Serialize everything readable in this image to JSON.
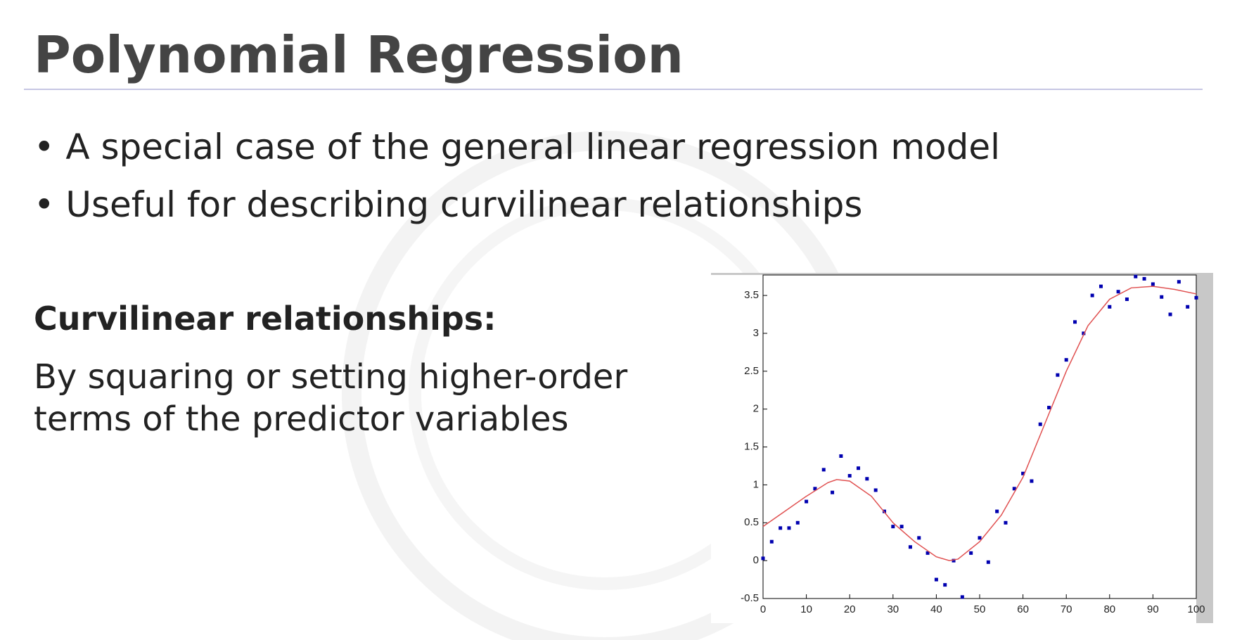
{
  "header": {
    "title": "Polynomial Regression"
  },
  "bullets": [
    "A special case of the general linear regression model",
    "Useful for describing curvilinear relationships"
  ],
  "section": {
    "heading": "Curvilinear relationships:",
    "lines": [
      "By squaring or setting higher-order",
      "terms of the predictor variables"
    ]
  },
  "chart_data": {
    "type": "scatter",
    "xlim": [
      0,
      100
    ],
    "xticks": [
      0,
      10,
      20,
      30,
      40,
      50,
      60,
      70,
      80,
      90,
      100
    ],
    "ylim": [
      -0.5,
      3.77
    ],
    "yticks": [
      -0.5,
      0,
      0.5,
      1,
      1.5,
      2,
      2.5,
      3,
      3.5
    ],
    "series": [
      {
        "type": "scatter",
        "color": "#0000b0",
        "x": [
          0,
          2,
          4,
          6,
          8,
          10,
          12,
          14,
          16,
          18,
          20,
          22,
          24,
          26,
          28,
          30,
          32,
          34,
          36,
          38,
          40,
          42,
          44,
          46,
          48,
          50,
          52,
          54,
          56,
          58,
          60,
          62,
          64,
          66,
          68,
          70,
          72,
          74,
          76,
          78,
          80,
          82,
          84,
          86,
          88,
          90,
          92,
          94,
          96,
          98,
          100
        ],
        "values": [
          0.03,
          0.25,
          0.43,
          0.43,
          0.5,
          0.78,
          0.95,
          1.2,
          0.9,
          1.38,
          1.12,
          1.22,
          1.08,
          0.93,
          0.65,
          0.45,
          0.45,
          0.18,
          0.3,
          0.1,
          -0.25,
          -0.32,
          0.0,
          -0.48,
          0.1,
          0.3,
          -0.02,
          0.65,
          0.5,
          0.95,
          1.15,
          1.05,
          1.8,
          2.02,
          2.45,
          2.65,
          3.15,
          3.0,
          3.5,
          3.62,
          3.35,
          3.55,
          3.45,
          3.75,
          3.72,
          3.65,
          3.48,
          3.25,
          3.68,
          3.35,
          3.47
        ]
      },
      {
        "type": "line",
        "color": "#e05050",
        "x": [
          0,
          5,
          10,
          15,
          17,
          20,
          25,
          30,
          35,
          40,
          43,
          45,
          50,
          55,
          60,
          65,
          70,
          75,
          80,
          85,
          90,
          95,
          100
        ],
        "values": [
          0.45,
          0.65,
          0.85,
          1.03,
          1.07,
          1.05,
          0.85,
          0.5,
          0.25,
          0.05,
          0.0,
          0.02,
          0.25,
          0.6,
          1.1,
          1.8,
          2.5,
          3.1,
          3.45,
          3.6,
          3.62,
          3.58,
          3.52
        ]
      }
    ]
  }
}
